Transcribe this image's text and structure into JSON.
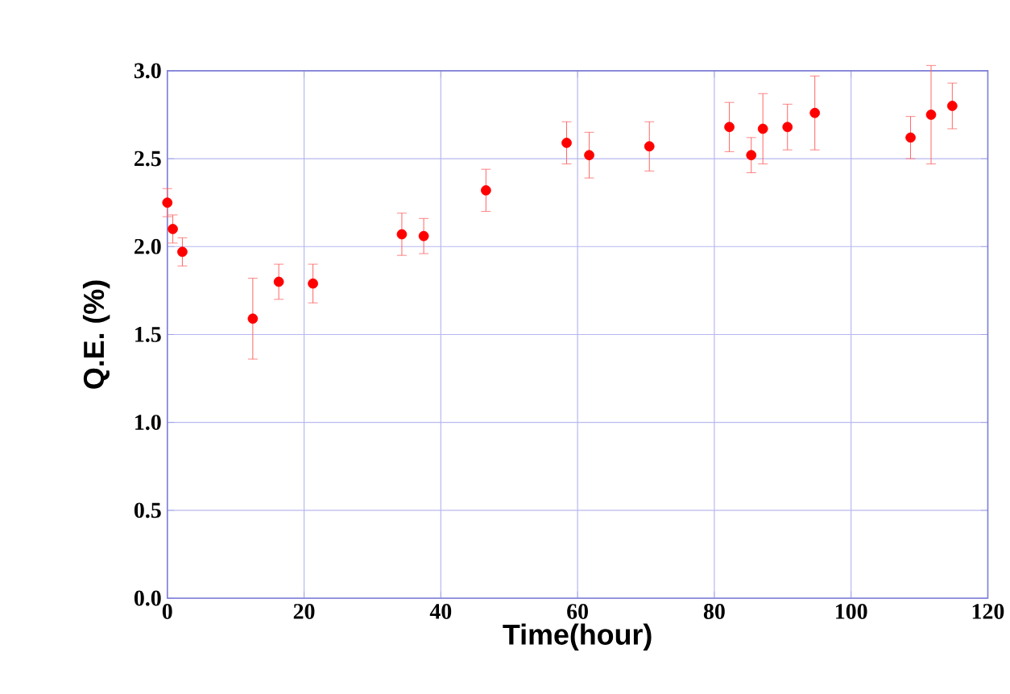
{
  "chart_data": {
    "type": "scatter",
    "xlabel": "Time(hour)",
    "ylabel": "Q.E. (%)",
    "x": [
      0,
      0.8,
      2.2,
      12.5,
      16.3,
      21.3,
      34.3,
      37.5,
      46.6,
      58.4,
      61.7,
      70.5,
      82.2,
      85.4,
      87.1,
      90.7,
      94.7,
      108.7,
      111.7,
      114.8
    ],
    "values": [
      2.25,
      2.1,
      1.97,
      1.59,
      1.8,
      1.79,
      2.07,
      2.06,
      2.32,
      2.59,
      2.52,
      2.57,
      2.68,
      2.52,
      2.67,
      2.68,
      2.76,
      2.62,
      2.75,
      2.8
    ],
    "errors": [
      0.08,
      0.08,
      0.08,
      0.23,
      0.1,
      0.11,
      0.12,
      0.1,
      0.12,
      0.12,
      0.13,
      0.14,
      0.14,
      0.1,
      0.2,
      0.13,
      0.21,
      0.12,
      0.28,
      0.13
    ],
    "color": "#ff0000",
    "marker": "circle",
    "xlim": [
      0,
      120
    ],
    "xticks": [
      0,
      20,
      40,
      60,
      80,
      100,
      120
    ],
    "ylim": [
      0,
      3
    ],
    "yticks": [
      {
        "value": 0,
        "label": "0.0"
      },
      {
        "value": 0.5,
        "label": "0.5"
      },
      {
        "value": 1,
        "label": "1.0"
      },
      {
        "value": 1.5,
        "label": "1.5"
      },
      {
        "value": 2,
        "label": "2.0"
      },
      {
        "value": 2.5,
        "label": "2.5"
      },
      {
        "value": 3,
        "label": "3.0"
      }
    ],
    "grid": true
  }
}
